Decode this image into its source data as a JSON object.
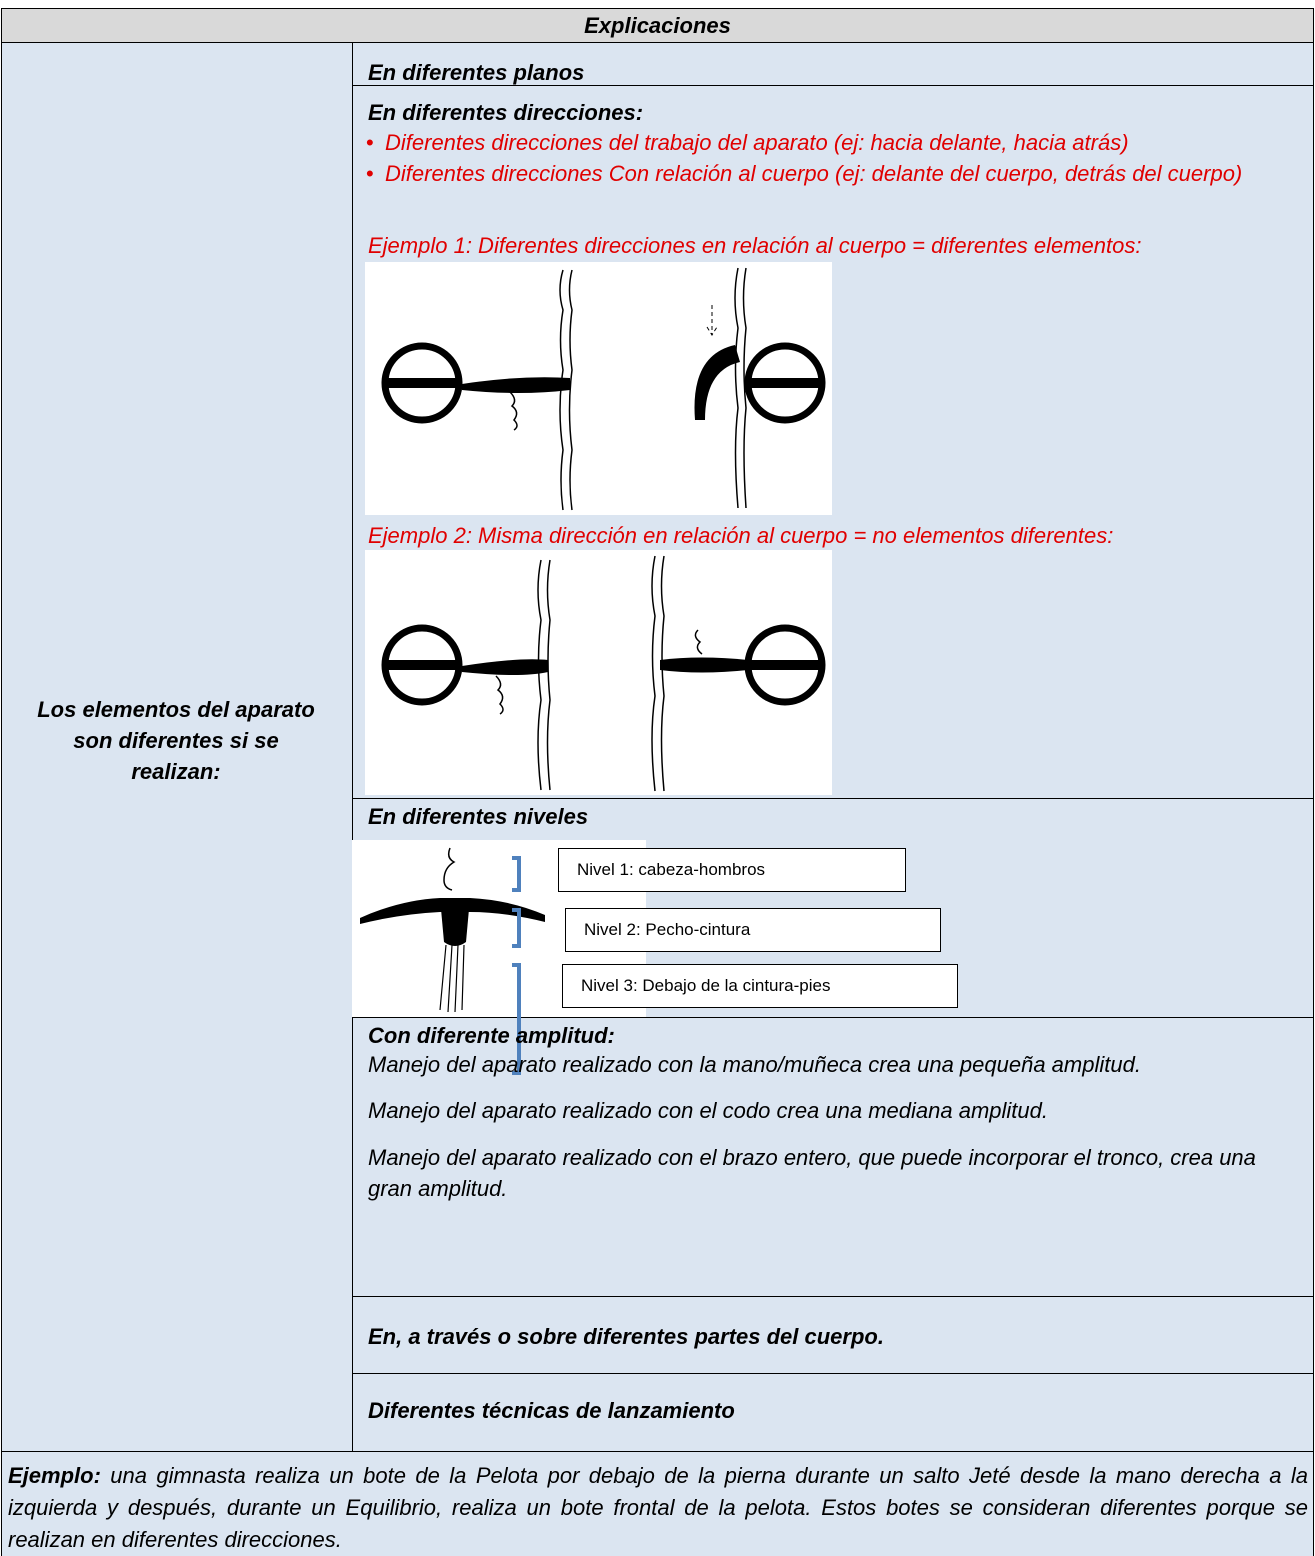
{
  "header": {
    "title": "Explicaciones"
  },
  "left_label": "Los elementos del aparato son diferentes si se realizan:",
  "rows": [
    {
      "title": "En diferentes planos"
    },
    {
      "title": "En diferentes direcciones:",
      "bullets": [
        "Diferentes direcciones del trabajo del aparato (ej: hacia delante, hacia atrás)",
        "Diferentes direcciones Con relación al cuerpo (ej: delante del cuerpo, detrás del cuerpo)"
      ],
      "examples": [
        "Ejemplo 1: Diferentes direcciones en relación al cuerpo = diferentes elementos:",
        "Ejemplo 2: Misma dirección en relación al cuerpo = no elementos diferentes:"
      ]
    },
    {
      "title": "En diferentes niveles",
      "levels": [
        "Nivel 1: cabeza-hombros",
        "Nivel 2: Pecho-cintura",
        "Nivel 3: Debajo de la cintura-pies"
      ]
    },
    {
      "title": "Con diferente amplitud:",
      "lines": [
        "Manejo del aparato realizado con la mano/muñeca crea una pequeña amplitud.",
        "Manejo del aparato realizado con el codo crea una mediana amplitud.",
        "Manejo del aparato realizado con el brazo entero, que puede incorporar el tronco, crea una gran amplitud."
      ]
    },
    {
      "title": "En, a través o sobre diferentes partes del cuerpo."
    },
    {
      "title": "Diferentes técnicas de lanzamiento"
    }
  ],
  "footer": {
    "lead": "Ejemplo:",
    "text": " una gimnasta realiza un bote de la Pelota por debajo de la pierna durante un salto Jeté desde la mano derecha a la izquierda y después, durante un Equilibrio, realiza un bote frontal de la pelota. Estos botes se consideran diferentes porque se realizan en diferentes direcciones."
  }
}
